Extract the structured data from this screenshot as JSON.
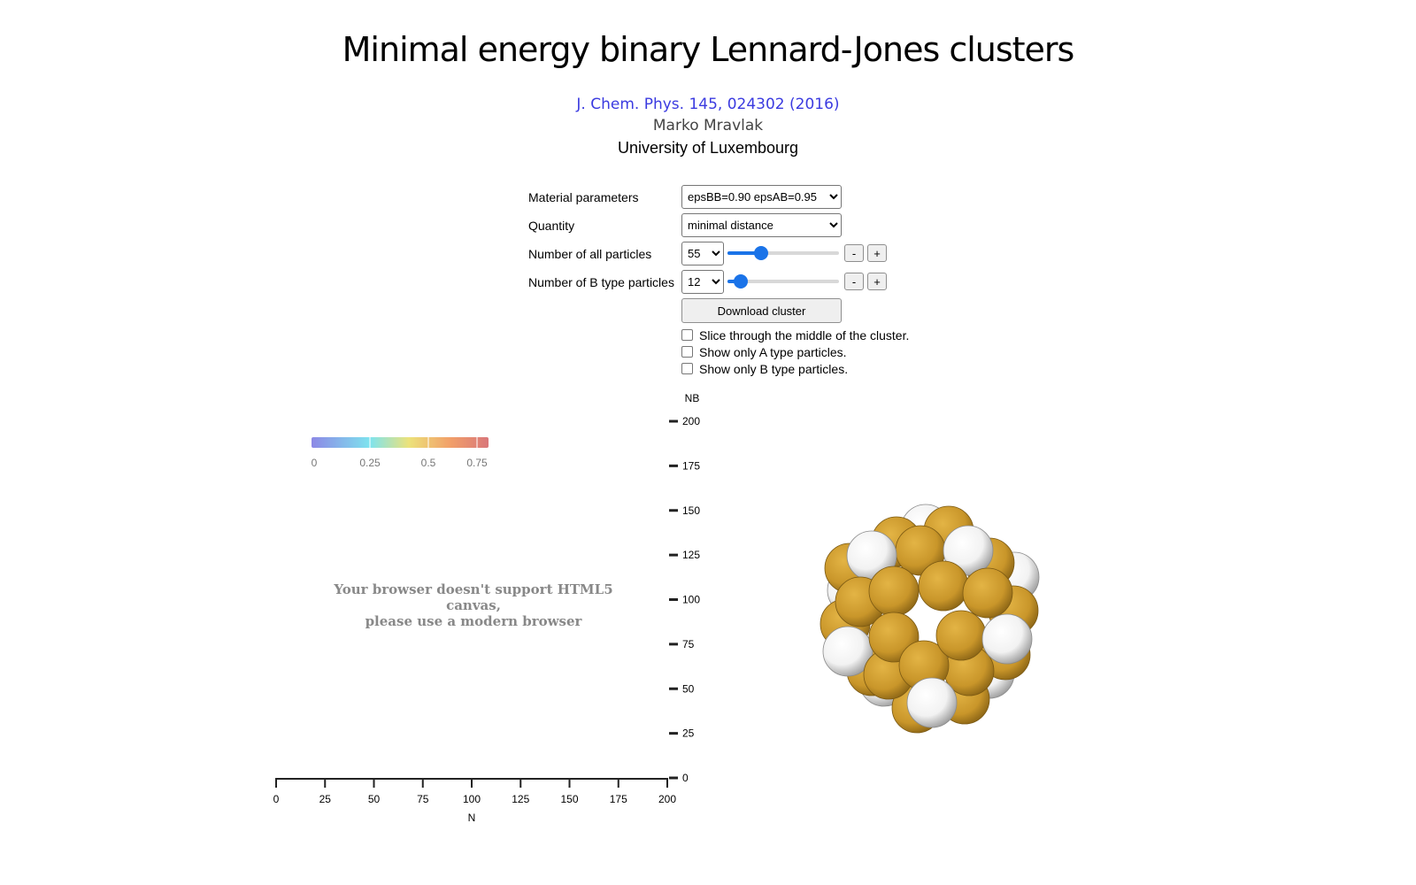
{
  "header": {
    "title": "Minimal energy binary Lennard-Jones clusters",
    "reference": "J. Chem. Phys. 145, 024302 (2016)",
    "author": "Marko Mravlak",
    "affiliation": "University of Luxembourg"
  },
  "controls": {
    "material_label": "Material parameters",
    "material_value": "epsBB=0.90 epsAB=0.95",
    "quantity_label": "Quantity",
    "quantity_value": "minimal distance",
    "n_all_label": "Number of all particles",
    "n_all_value": "55",
    "n_all_slider": 55,
    "n_b_label": "Number of B type particles",
    "n_b_value": "12",
    "n_b_slider": 12,
    "slider_max": 200,
    "minus": "-",
    "plus": "+",
    "download_label": "Download cluster",
    "checkbox_slice": "Slice through the middle of the cluster.",
    "checkbox_only_a": "Show only A type particles.",
    "checkbox_only_b": "Show only B type particles."
  },
  "colorbar": {
    "ticks": [
      "0",
      "0.25",
      "0.5",
      "0.75"
    ]
  },
  "canvas_message": {
    "line1": "Your browser doesn't support HTML5 canvas,",
    "line2": "please use a modern browser"
  },
  "plot": {
    "y_label": "NB",
    "x_label": "N",
    "y_ticks": [
      "200",
      "175",
      "150",
      "125",
      "100",
      "75",
      "50",
      "25",
      "0"
    ],
    "x_ticks": [
      "0",
      "25",
      "50",
      "75",
      "100",
      "125",
      "150",
      "175",
      "200"
    ]
  },
  "colors": {
    "particle_a": "#c9962a",
    "particle_b": "#f2f2f2",
    "slider_accent": "#1a73e8",
    "link": "#3b3be0"
  }
}
